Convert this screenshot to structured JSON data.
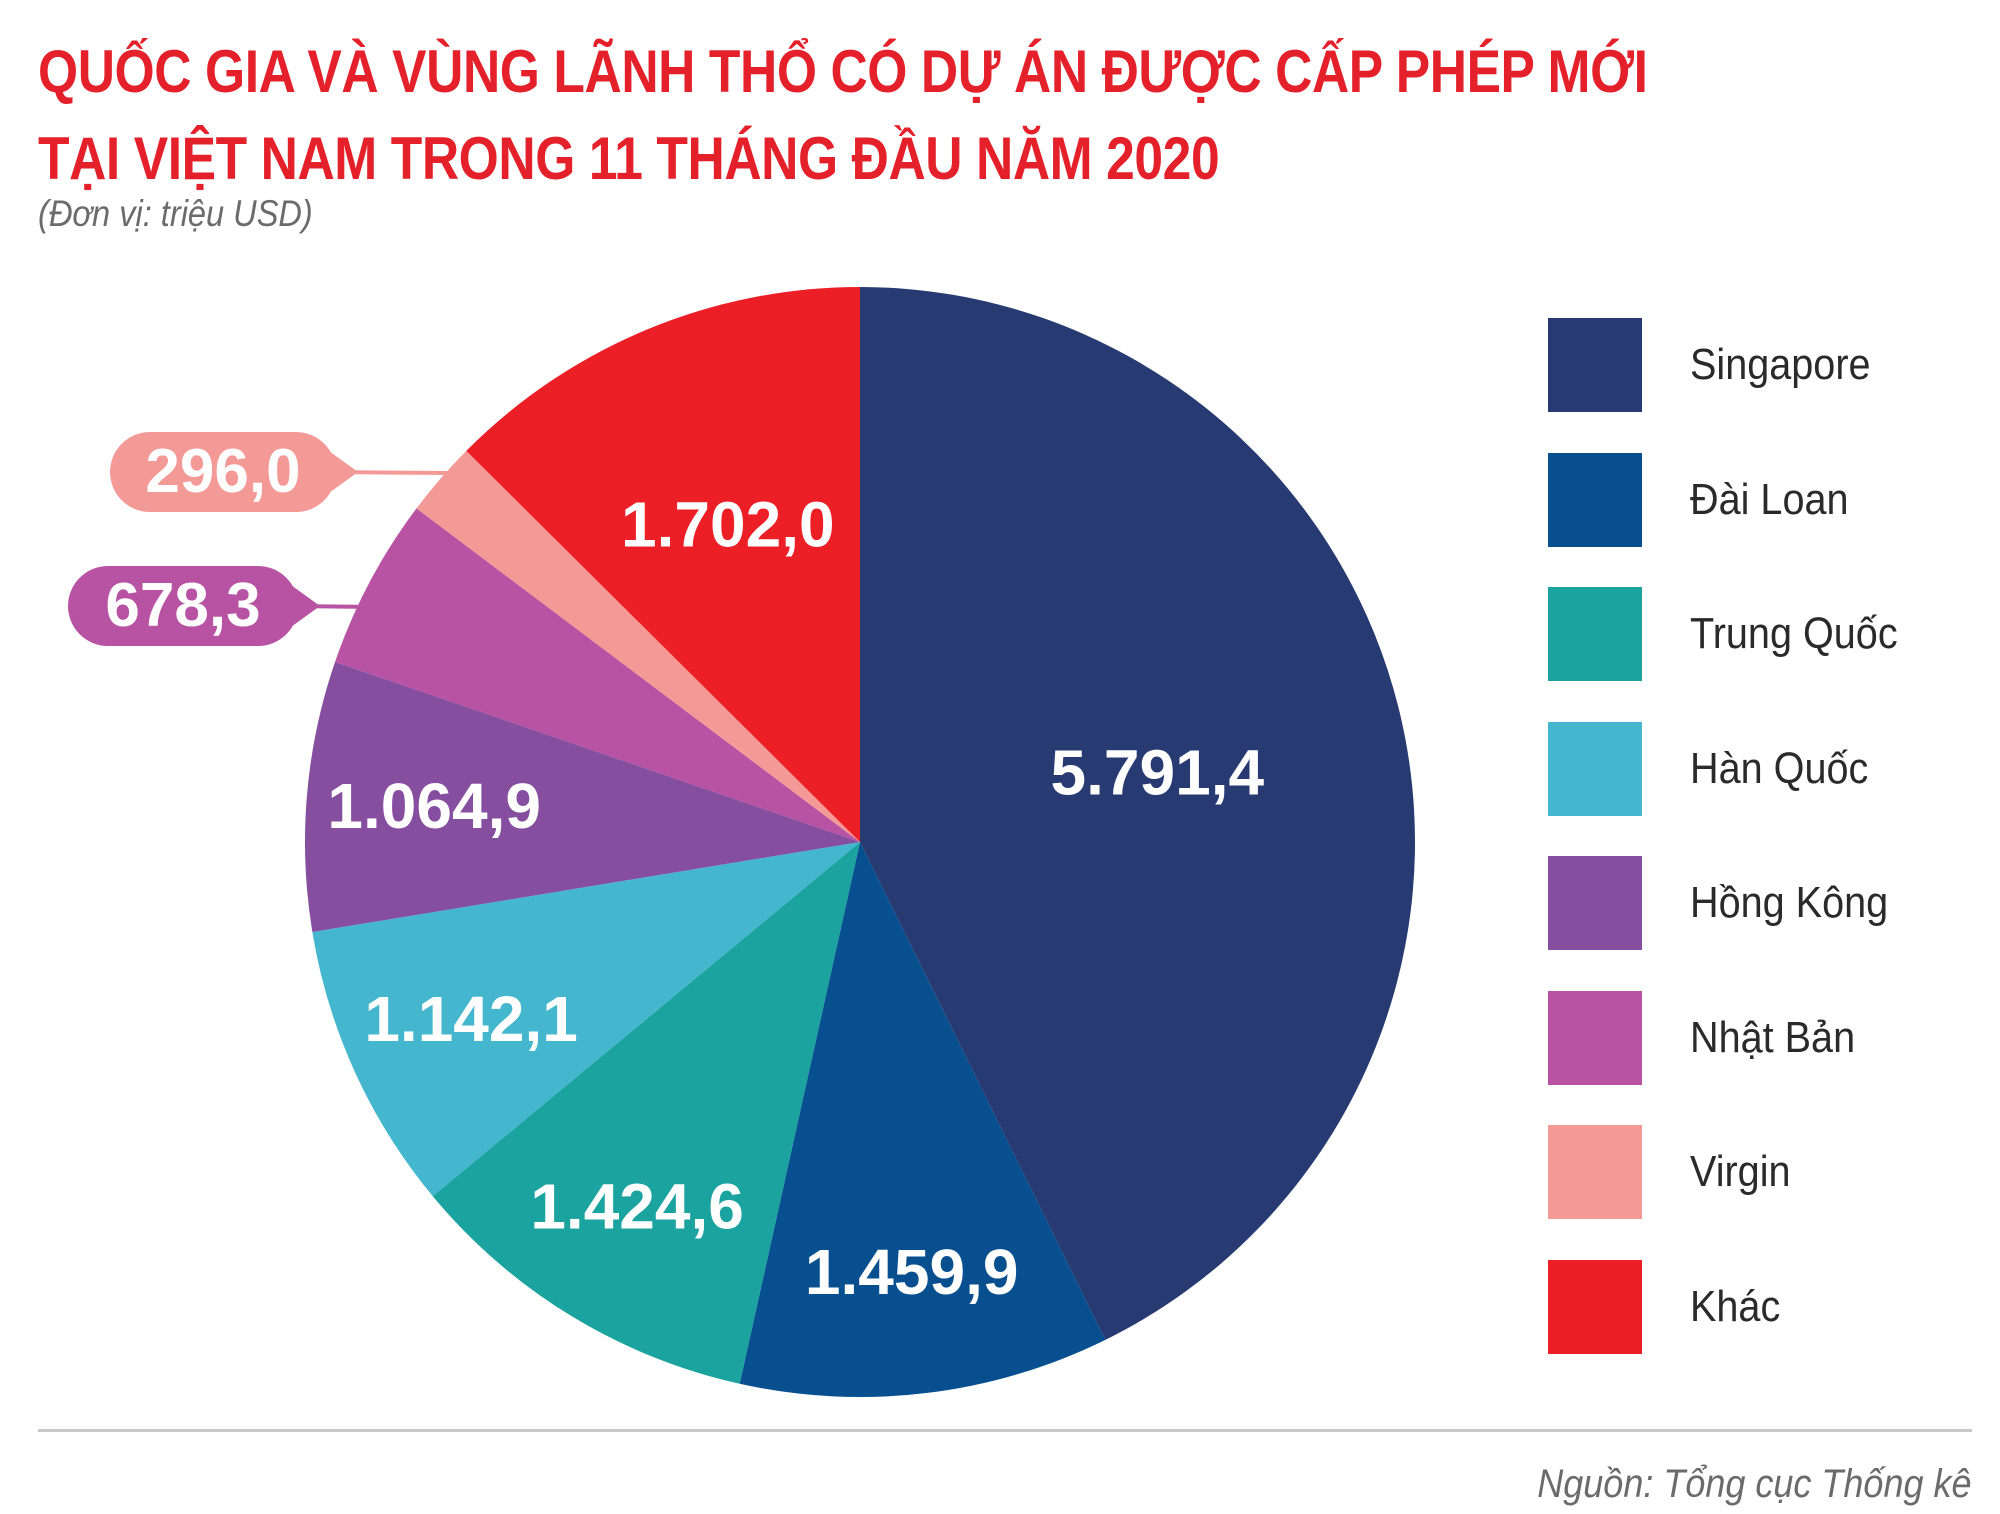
{
  "title_lines": [
    "QUỐC GIA VÀ VÙNG LÃNH THỔ CÓ DỰ ÁN ĐƯỢC CẤP PHÉP MỚI",
    "TẠI VIỆT NAM TRONG 11 THÁNG ĐẦU NĂM 2020"
  ],
  "subtitle": "(Đơn vị: triệu USD)",
  "source": "Nguồn: Tổng cục Thống kê",
  "chart_data": {
    "type": "pie",
    "title": "QUỐC GIA VÀ VÙNG LÃNH THỔ CÓ DỰ ÁN ĐƯỢC CẤP PHÉP MỚI TẠI VIỆT NAM TRONG 11 THÁNG ĐẦU NĂM 2020",
    "unit": "triệu USD",
    "legend_position": "right",
    "start": "top, clockwise",
    "categories": [
      "Singapore",
      "Đài Loan",
      "Trung Quốc",
      "Hàn Quốc",
      "Hồng Kông",
      "Nhật Bản",
      "Virgin",
      "Khác"
    ],
    "values": [
      5791.4,
      1459.9,
      1424.6,
      1142.1,
      1064.9,
      678.3,
      296.0,
      1702.0
    ],
    "value_labels": [
      "5.791,4",
      "1.459,9",
      "1.424,6",
      "1.142,1",
      "1.064,9",
      "678,3",
      "296,0",
      "1.702,0"
    ],
    "colors": [
      "#273a72",
      "#074f8f",
      "#1ba3a0",
      "#44b7ce",
      "#864e9f",
      "#b852a3",
      "#f49a96",
      "#ec1f27"
    ],
    "label_colors": [
      "#ffffff",
      "#ffffff",
      "#ffffff",
      "#ffffff",
      "#ffffff",
      "#ffffff",
      "#ffffff",
      "#ffffff"
    ],
    "external_labels": [
      "Virgin",
      "Nhật Bản"
    ]
  }
}
